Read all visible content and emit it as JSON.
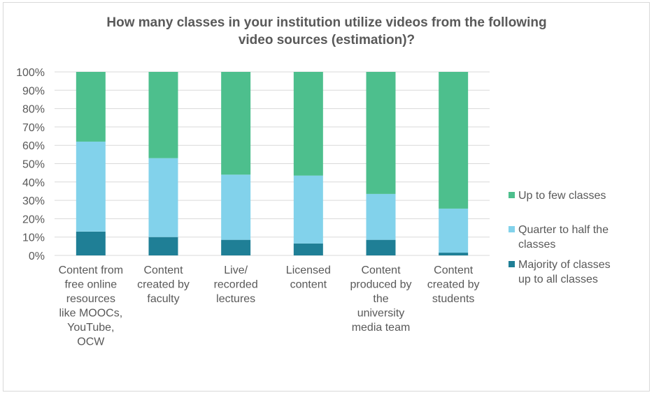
{
  "chart_data": {
    "type": "bar",
    "stacked": "percent",
    "title": "How many classes in your institution utilize videos from the following video sources (estimation)?",
    "title_lines": [
      "How many classes in your institution utilize videos from the following",
      "video sources (estimation)?"
    ],
    "categories": [
      "Content from free online resources like MOOCs, YouTube, OCW",
      "Content created by faculty",
      "Live/ recorded lectures",
      "Licensed content",
      "Content produced by the university media team",
      "Content created by students"
    ],
    "category_lines": [
      [
        "Content from",
        "free online",
        "resources",
        "like MOOCs,",
        "YouTube,",
        "OCW"
      ],
      [
        "Content",
        "created by",
        "faculty"
      ],
      [
        "Live/",
        "recorded",
        "lectures"
      ],
      [
        "Licensed",
        "content"
      ],
      [
        "Content",
        "produced by",
        "the",
        "university",
        "media team"
      ],
      [
        "Content",
        "created by",
        "students"
      ]
    ],
    "series": [
      {
        "name": "Majority of classes up to all classes",
        "name_lines": [
          "Majority of classes",
          "up to all classes"
        ],
        "color": "#1f7f96",
        "values": [
          13,
          10,
          8.5,
          6.5,
          8.5,
          1.5
        ]
      },
      {
        "name": "Quarter to half the classes",
        "name_lines": [
          "Quarter to half the",
          "classes"
        ],
        "color": "#82d2eb",
        "values": [
          49,
          43,
          35.5,
          37,
          25,
          24
        ]
      },
      {
        "name": "Up to few classes",
        "name_lines": [
          "Up to few classes"
        ],
        "color": "#4dbf8d",
        "values": [
          38,
          47,
          56,
          56.5,
          66.5,
          74.5
        ]
      }
    ],
    "legend_order": [
      2,
      1,
      0
    ],
    "yticks": [
      "0%",
      "10%",
      "20%",
      "30%",
      "40%",
      "50%",
      "60%",
      "70%",
      "80%",
      "90%",
      "100%"
    ],
    "ylim": [
      0,
      100
    ],
    "grid": true,
    "legend_position": "right"
  }
}
